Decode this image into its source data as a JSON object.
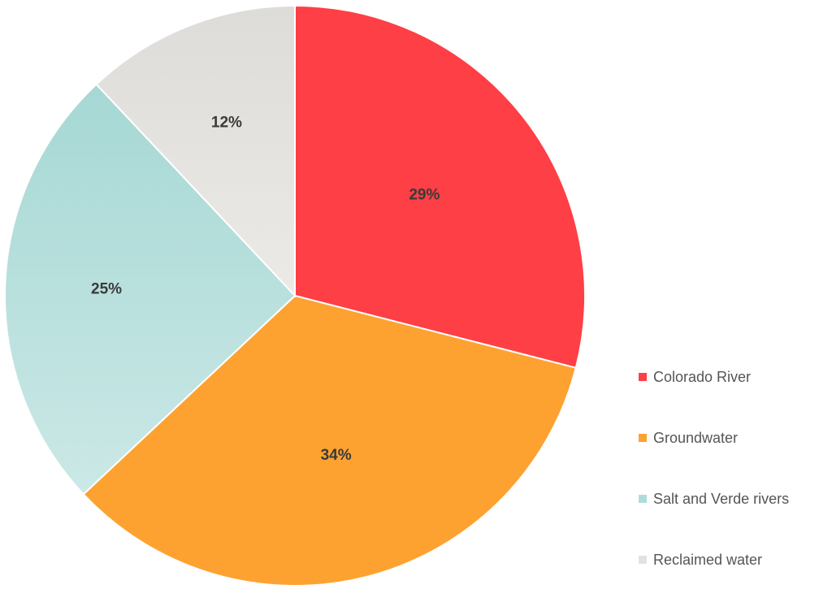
{
  "chart_data": {
    "type": "pie",
    "title": "",
    "categories": [
      "Colorado River",
      "Groundwater",
      "Salt and Verde rivers",
      "Reclaimed water"
    ],
    "values": [
      29,
      34,
      25,
      12
    ],
    "labels": [
      "29%",
      "34%",
      "25%",
      "12%"
    ],
    "colors": [
      "#fe3f45",
      "#fda231",
      "#afdcda",
      "#e3e2df"
    ],
    "start_angle_deg": 0,
    "direction": "clockwise",
    "legend_position": "bottom-right"
  }
}
